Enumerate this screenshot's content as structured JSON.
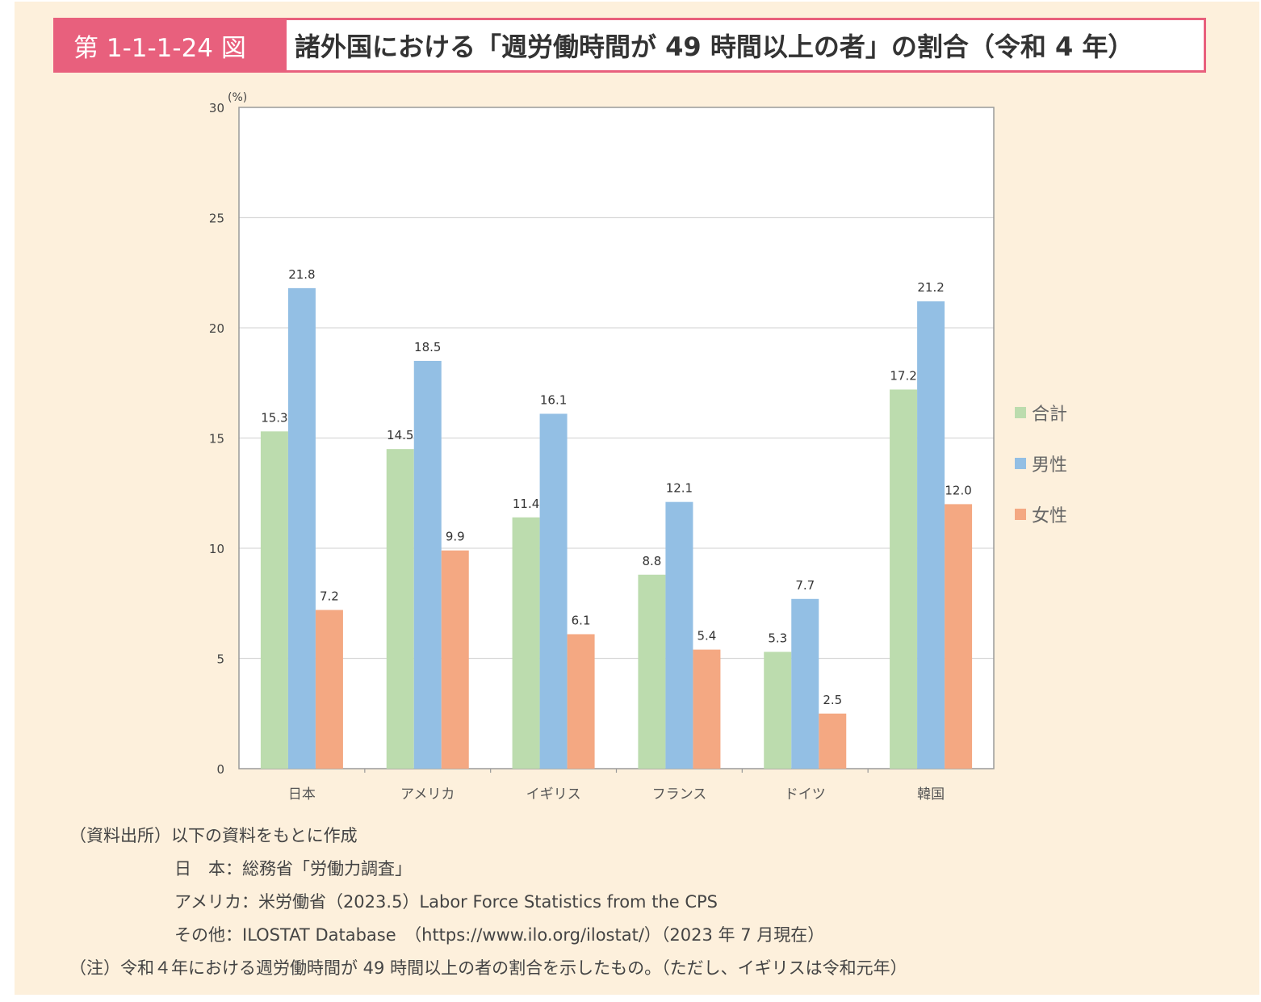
{
  "figure": {
    "number": "第 1-1-1-24 図",
    "title": "諸外国における「週労働時間が 49 時間以上の者」の割合（令和 4 年）"
  },
  "colors": {
    "total": "#bcdcae",
    "male": "#93bfe4",
    "female": "#f4a882",
    "accent": "#e8607d",
    "panel": "#fdf0dc"
  },
  "chart_data": {
    "type": "bar",
    "title": "諸外国における「週労働時間が 49 時間以上の者」の割合（令和 4 年）",
    "xlabel": "",
    "ylabel": "(%)",
    "ylim": [
      0,
      30
    ],
    "yticks": [
      0,
      5,
      10,
      15,
      20,
      25,
      30
    ],
    "grid": true,
    "legend_position": "right",
    "categories": [
      "日本",
      "アメリカ",
      "イギリス",
      "フランス",
      "ドイツ",
      "韓国"
    ],
    "series": [
      {
        "name": "合計",
        "key": "total",
        "values": [
          15.3,
          14.5,
          11.4,
          8.8,
          5.3,
          17.2
        ],
        "labels": [
          "15.3",
          "14.5",
          "11.4",
          "8.8",
          "5.3",
          "17.2"
        ]
      },
      {
        "name": "男性",
        "key": "male",
        "values": [
          21.8,
          18.5,
          16.1,
          12.1,
          7.7,
          21.2
        ],
        "labels": [
          "21.8",
          "18.5",
          "16.1",
          "12.1",
          "7.7",
          "21.2"
        ]
      },
      {
        "name": "女性",
        "key": "female",
        "values": [
          7.2,
          9.9,
          6.1,
          5.4,
          2.5,
          12.0
        ],
        "labels": [
          "7.2",
          "9.9",
          "6.1",
          "5.4",
          "2.5",
          "12.0"
        ]
      }
    ]
  },
  "source": {
    "line1": "（資料出所）以下の資料をもとに作成",
    "line2": "日　本：総務省「労働力調査」",
    "line3": "アメリカ：米労働省（2023.5）Labor Force Statistics from the CPS",
    "line4": "その他：ILOSTAT Database　（https://www.ilo.org/ilostat/）（2023 年 7 月現在）",
    "note": "（注）令和４年における週労働時間が 49 時間以上の者の割合を示したもの。（ただし、イギリスは令和元年）"
  }
}
